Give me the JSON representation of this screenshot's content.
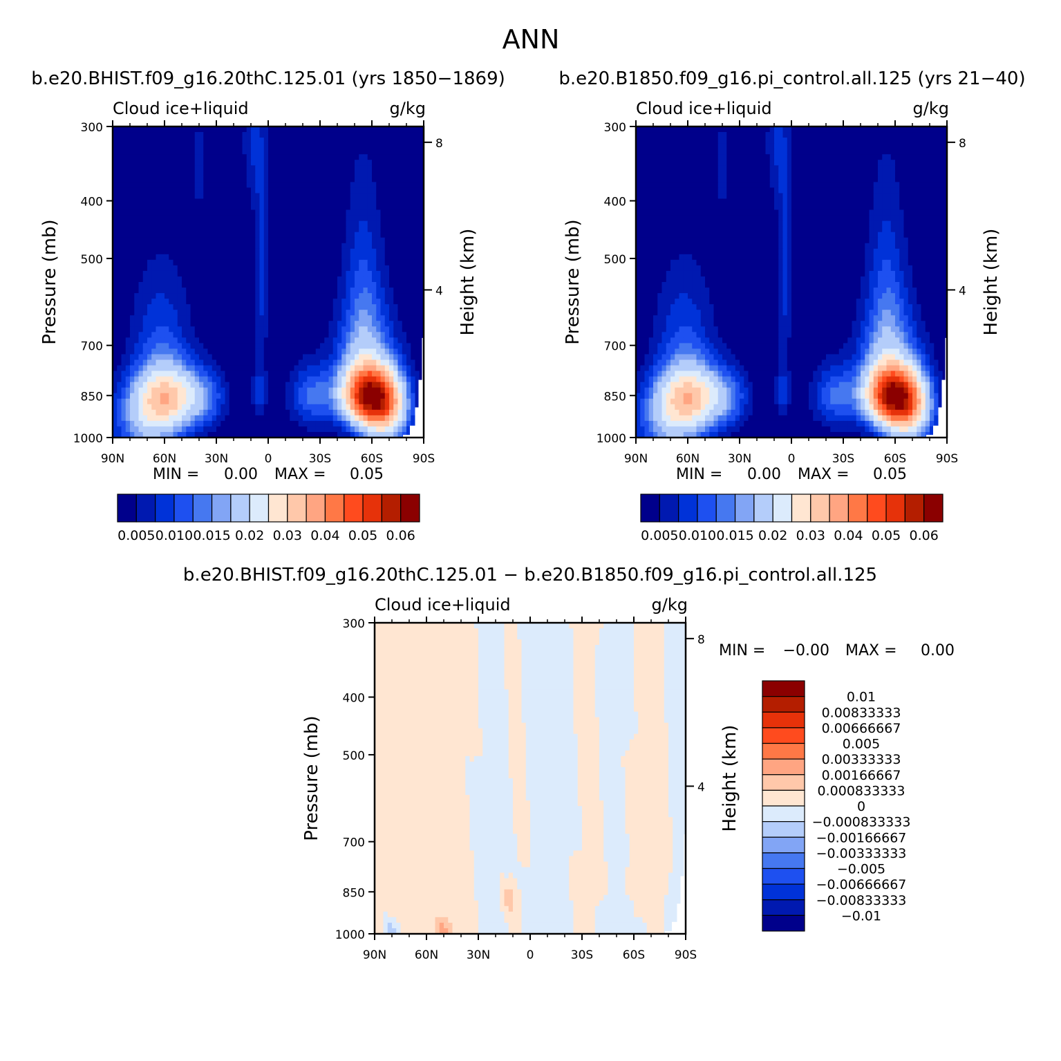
{
  "figure": {
    "title": "ANN",
    "left_caption": "b.e20.BHIST.f09_g16.20thC.125.01 (yrs 1850−1869)",
    "right_caption": "b.e20.B1850.f09_g16.pi_control.all.125 (yrs 21−40)",
    "diff_caption": "b.e20.BHIST.f09_g16.20thC.125.01 − b.e20.B1850.f09_g16.pi_control.all.125"
  },
  "colors": {
    "main_palette": [
      "#00008b",
      "#0019b0",
      "#0032d8",
      "#1e50f0",
      "#4678f0",
      "#82a5f5",
      "#b4cdfa",
      "#dcebfc",
      "#ffe6d2",
      "#ffc8aa",
      "#ffa582",
      "#ff7846",
      "#ff4b1e",
      "#e6320a",
      "#b41e00",
      "#8b0000"
    ],
    "diff_palette": [
      "#00008b",
      "#0019b0",
      "#0032d8",
      "#1e50f0",
      "#4678f0",
      "#82a5f5",
      "#b4cdfa",
      "#dcebfc",
      "#ffe6d2",
      "#ffc8aa",
      "#ffa582",
      "#ff7846",
      "#ff4b1e",
      "#e6320a",
      "#b41e00",
      "#8b0000"
    ]
  },
  "chart_data": [
    {
      "id": "left",
      "type": "heatmap",
      "title_left": "Cloud ice+liquid",
      "title_right": "g/kg",
      "ylabel": "Pressure (mb)",
      "ylabel2": "Height (km)",
      "xlim": [
        90,
        -90
      ],
      "ylim": [
        1000,
        300
      ],
      "xticks": [
        90,
        60,
        30,
        0,
        -30,
        -60,
        -90
      ],
      "xtick_labels": [
        "90N",
        "60N",
        "30N",
        "0",
        "30S",
        "60S",
        "90S"
      ],
      "yticks": [
        300,
        400,
        500,
        700,
        850,
        1000
      ],
      "ytick_labels": [
        "300",
        "400",
        "500",
        "700",
        "850",
        "1000"
      ],
      "height_ticks": [
        8,
        4
      ],
      "height_tick_labels": [
        "8",
        "4"
      ],
      "min_label": "MIN =",
      "min_value": "0.00",
      "max_label": "MAX =",
      "max_value": "0.05",
      "colorbar_labels": [
        "0.005",
        "0.010",
        "0.015",
        "0.02",
        "0.03",
        "0.04",
        "0.05",
        "0.06"
      ],
      "contour_levels": [
        0.0025,
        0.005,
        0.0075,
        0.01,
        0.0125,
        0.015,
        0.02,
        0.025,
        0.03,
        0.035,
        0.04,
        0.045,
        0.05,
        0.055,
        0.06
      ],
      "features": [
        {
          "lat": 58,
          "p": 855,
          "amp": 0.026,
          "sx": 14,
          "sp": 70
        },
        {
          "lat": 70,
          "p": 960,
          "amp": 0.012,
          "sx": 14,
          "sp": 90
        },
        {
          "lat": 62,
          "p": 720,
          "amp": 0.008,
          "sx": 12,
          "sp": 150
        },
        {
          "lat": -59,
          "p": 850,
          "amp": 0.048,
          "sx": 11,
          "sp": 65
        },
        {
          "lat": -57,
          "p": 760,
          "amp": 0.012,
          "sx": 13,
          "sp": 120
        },
        {
          "lat": -55,
          "p": 590,
          "amp": 0.007,
          "sx": 8,
          "sp": 180
        },
        {
          "lat": -25,
          "p": 850,
          "amp": 0.01,
          "sx": 9,
          "sp": 70
        },
        {
          "lat": 5,
          "p": 840,
          "amp": 0.006,
          "sx": 3,
          "sp": 60
        },
        {
          "lat": 4,
          "p": 540,
          "amp": 0.006,
          "sx": 3,
          "sp": 140
        },
        {
          "lat": 8,
          "p": 320,
          "amp": 0.005,
          "sx": 5,
          "sp": 60
        },
        {
          "lat": 40,
          "p": 350,
          "amp": 0.004,
          "sx": 3,
          "sp": 50
        },
        {
          "lat": 35,
          "p": 860,
          "amp": 0.006,
          "sx": 8,
          "sp": 70
        },
        {
          "lat": -68,
          "p": 920,
          "amp": 0.02,
          "sx": 9,
          "sp": 80
        }
      ]
    },
    {
      "id": "right",
      "type": "heatmap",
      "title_left": "Cloud ice+liquid",
      "title_right": "g/kg",
      "ylabel": "Pressure (mb)",
      "ylabel2": "Height (km)",
      "xlim": [
        90,
        -90
      ],
      "ylim": [
        1000,
        300
      ],
      "xticks": [
        90,
        60,
        30,
        0,
        -30,
        -60,
        -90
      ],
      "xtick_labels": [
        "90N",
        "60N",
        "30N",
        "0",
        "30S",
        "60S",
        "90S"
      ],
      "yticks": [
        300,
        400,
        500,
        700,
        850,
        1000
      ],
      "ytick_labels": [
        "300",
        "400",
        "500",
        "700",
        "850",
        "1000"
      ],
      "height_ticks": [
        8,
        4
      ],
      "height_tick_labels": [
        "8",
        "4"
      ],
      "min_label": "MIN =",
      "min_value": "0.00",
      "max_label": "MAX =",
      "max_value": "0.05",
      "colorbar_labels": [
        "0.005",
        "0.010",
        "0.015",
        "0.02",
        "0.03",
        "0.04",
        "0.05",
        "0.06"
      ],
      "contour_levels": [
        0.0025,
        0.005,
        0.0075,
        0.01,
        0.0125,
        0.015,
        0.02,
        0.025,
        0.03,
        0.035,
        0.04,
        0.045,
        0.05,
        0.055,
        0.06
      ],
      "features": [
        {
          "lat": 58,
          "p": 855,
          "amp": 0.026,
          "sx": 14,
          "sp": 70
        },
        {
          "lat": 70,
          "p": 960,
          "amp": 0.012,
          "sx": 14,
          "sp": 90
        },
        {
          "lat": 62,
          "p": 720,
          "amp": 0.008,
          "sx": 12,
          "sp": 150
        },
        {
          "lat": -59,
          "p": 850,
          "amp": 0.048,
          "sx": 11,
          "sp": 65
        },
        {
          "lat": -57,
          "p": 760,
          "amp": 0.012,
          "sx": 13,
          "sp": 120
        },
        {
          "lat": -55,
          "p": 590,
          "amp": 0.007,
          "sx": 8,
          "sp": 180
        },
        {
          "lat": -25,
          "p": 850,
          "amp": 0.01,
          "sx": 9,
          "sp": 70
        },
        {
          "lat": 5,
          "p": 840,
          "amp": 0.006,
          "sx": 3,
          "sp": 60
        },
        {
          "lat": 4,
          "p": 540,
          "amp": 0.006,
          "sx": 3,
          "sp": 140
        },
        {
          "lat": 8,
          "p": 320,
          "amp": 0.005,
          "sx": 5,
          "sp": 60
        },
        {
          "lat": 40,
          "p": 350,
          "amp": 0.004,
          "sx": 3,
          "sp": 50
        },
        {
          "lat": 35,
          "p": 860,
          "amp": 0.006,
          "sx": 8,
          "sp": 70
        },
        {
          "lat": -68,
          "p": 920,
          "amp": 0.02,
          "sx": 9,
          "sp": 80
        }
      ]
    },
    {
      "id": "diff",
      "type": "heatmap",
      "title_left": "Cloud ice+liquid",
      "title_right": "g/kg",
      "ylabel": "Pressure (mb)",
      "ylabel2": "Height (km)",
      "xlim": [
        90,
        -90
      ],
      "ylim": [
        1000,
        300
      ],
      "xticks": [
        90,
        60,
        30,
        0,
        -30,
        -60,
        -90
      ],
      "xtick_labels": [
        "90N",
        "60N",
        "30N",
        "0",
        "30S",
        "60S",
        "90S"
      ],
      "yticks": [
        300,
        400,
        500,
        700,
        850,
        1000
      ],
      "ytick_labels": [
        "300",
        "400",
        "500",
        "700",
        "850",
        "1000"
      ],
      "height_ticks": [
        8,
        4
      ],
      "height_tick_labels": [
        "8",
        "4"
      ],
      "min_label": "MIN =",
      "min_value": "−0.00",
      "max_label": "MAX =",
      "max_value": "0.00",
      "colorbar_labels": [
        "0.01",
        "0.00833333",
        "0.00666667",
        "0.005",
        "0.00333333",
        "0.00166667",
        "0.000833333",
        "0",
        "−0.000833333",
        "−0.00166667",
        "−0.00333333",
        "−0.005",
        "−0.00666667",
        "−0.00833333",
        "−0.01"
      ],
      "contour_levels": [
        -0.01,
        -0.00833333,
        -0.00666667,
        -0.005,
        -0.00333333,
        -0.00166667,
        -0.000833333,
        0,
        0.000833333,
        0.00166667,
        0.00333333,
        0.005,
        0.00666667,
        0.00833333,
        0.01
      ],
      "features": [
        {
          "lat": 13,
          "p": 870,
          "amp": 0.0015,
          "sx": 3,
          "sp": 30
        },
        {
          "lat": -56,
          "p": 820,
          "amp": 0.0012,
          "sx": 2,
          "sp": 30
        },
        {
          "lat": 50,
          "p": 980,
          "amp": 0.0012,
          "sx": 3,
          "sp": 25
        },
        {
          "lat": 80,
          "p": 985,
          "amp": -0.0012,
          "sx": 4,
          "sp": 25
        },
        {
          "lat": -65,
          "p": 980,
          "amp": -0.0012,
          "sx": 3,
          "sp": 25
        }
      ],
      "stripes": [
        {
          "lat": 85,
          "sign": 1,
          "w": 14
        },
        {
          "lat": 48,
          "sign": 1,
          "w": 12
        },
        {
          "lat": 20,
          "sign": -1,
          "w": 10
        },
        {
          "lat": 8,
          "sign": 1,
          "w": 6
        },
        {
          "lat": -12,
          "sign": -1,
          "w": 12
        },
        {
          "lat": -35,
          "sign": 1,
          "w": 8
        },
        {
          "lat": -48,
          "sign": -1,
          "w": 8
        },
        {
          "lat": -70,
          "sign": 1,
          "w": 10
        },
        {
          "lat": -85,
          "sign": -1,
          "w": 5
        }
      ]
    }
  ]
}
